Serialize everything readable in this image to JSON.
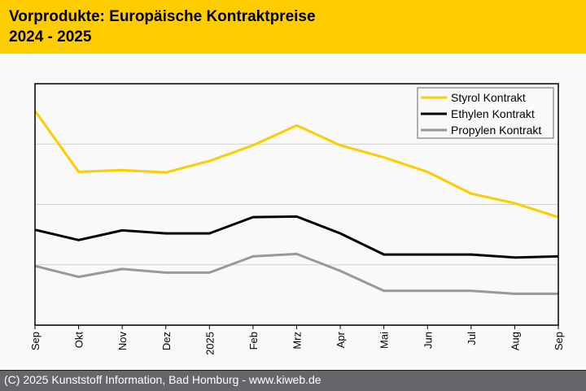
{
  "header": {
    "title_line1": "Vorprodukte: Europäische Kontraktpreise",
    "title_line2": "2024 - 2025"
  },
  "footer": {
    "text": "(C) 2025 Kunststoff Information, Bad Homburg - www.kiweb.de"
  },
  "colors": {
    "header_bg": "#ffcc00",
    "footer_bg": "#66676b",
    "styrol": "#ffcc00",
    "ethylen": "#000000",
    "propylen": "#999999"
  },
  "chart_data": {
    "type": "line",
    "title": "Vorprodukte: Europäische Kontraktpreise 2024 - 2025",
    "xlabel": "",
    "ylabel": "",
    "y_axis_labels_shown": false,
    "y_unit_note": "relative index, gridline units (no y labels shown)",
    "ylim": [
      0,
      4
    ],
    "grid": true,
    "gridlines": [
      1,
      2,
      3
    ],
    "legend_position": "top-right",
    "categories": [
      "Sep",
      "Okt",
      "Nov",
      "Dez",
      "2025",
      "Feb",
      "Mrz",
      "Apr",
      "Mai",
      "Jun",
      "Jul",
      "Aug",
      "Sep"
    ],
    "series": [
      {
        "name": "Styrol Kontrakt",
        "color": "#ffcc00",
        "values": [
          3.55,
          2.54,
          2.57,
          2.53,
          2.72,
          2.98,
          3.31,
          2.98,
          2.78,
          2.54,
          2.18,
          2.02,
          1.79
        ]
      },
      {
        "name": "Ethylen Kontrakt",
        "color": "#000000",
        "values": [
          1.58,
          1.41,
          1.57,
          1.52,
          1.52,
          1.79,
          1.8,
          1.52,
          1.17,
          1.17,
          1.17,
          1.12,
          1.14
        ]
      },
      {
        "name": "Propylen Kontrakt",
        "color": "#999999",
        "values": [
          0.98,
          0.8,
          0.93,
          0.87,
          0.87,
          1.14,
          1.18,
          0.9,
          0.57,
          0.57,
          0.57,
          0.52,
          0.52
        ]
      }
    ]
  }
}
